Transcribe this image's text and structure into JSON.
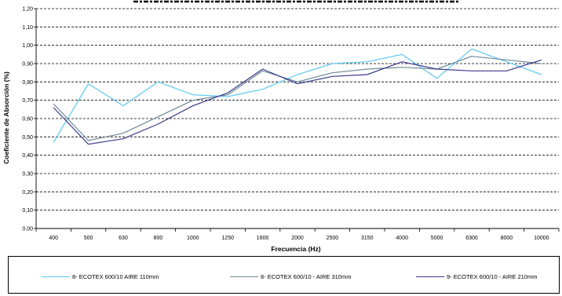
{
  "chart_data": {
    "type": "line",
    "title": "",
    "xlabel": "Frecuencia (Hz)",
    "ylabel": "Coeficiente de Absorción (%)",
    "categories": [
      "400",
      "500",
      "630",
      "800",
      "1000",
      "1250",
      "1600",
      "2000",
      "2500",
      "3150",
      "4000",
      "5000",
      "6300",
      "8000",
      "10000"
    ],
    "y_ticks": [
      "0,00",
      "0,10",
      "0,20",
      "0,30",
      "0,40",
      "0,50",
      "0,60",
      "0,70",
      "0,80",
      "0,90",
      "1,00",
      "1,10",
      "1,20"
    ],
    "ylim": [
      0,
      1.2
    ],
    "grid": "horizontal-dashed",
    "legend_position": "bottom",
    "series": [
      {
        "name": "8- ECOTEX  600/10 AIRE 110mm",
        "color": "#5BC8F0",
        "values": [
          0.47,
          0.79,
          0.67,
          0.8,
          0.73,
          0.72,
          0.76,
          0.84,
          0.9,
          0.91,
          0.95,
          0.82,
          0.98,
          0.91,
          0.84
        ]
      },
      {
        "name": "8- ECOTEX  600/10 - AIRE 310mm",
        "color": "#6E8A96",
        "values": [
          0.68,
          0.48,
          0.52,
          0.61,
          0.7,
          0.73,
          0.86,
          0.8,
          0.85,
          0.87,
          0.88,
          0.87,
          0.94,
          0.92,
          0.9
        ]
      },
      {
        "name": "9- ECOTEX  600/10  - AIRE 210mm",
        "color": "#3A3A8C",
        "values": [
          0.66,
          0.46,
          0.49,
          0.57,
          0.67,
          0.74,
          0.87,
          0.79,
          0.83,
          0.84,
          0.91,
          0.87,
          0.86,
          0.86,
          0.92
        ]
      }
    ]
  }
}
